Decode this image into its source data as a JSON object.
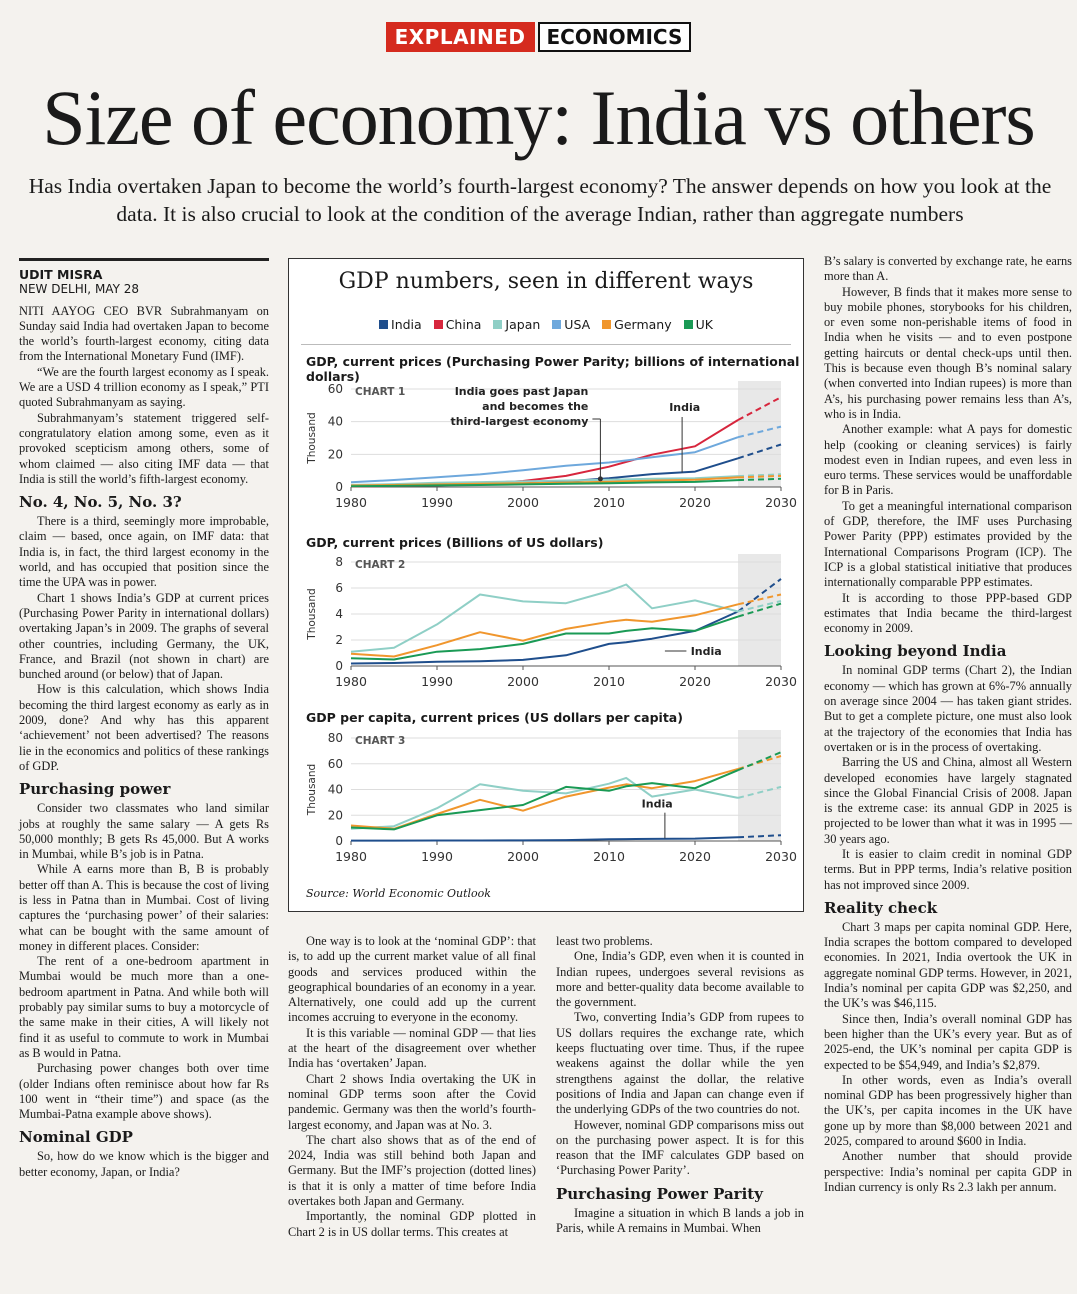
{
  "flag": {
    "left": "EXPLAINED",
    "right": "ECONOMICS"
  },
  "headline": "Size of economy: India vs others",
  "dek": "Has India overtaken Japan to become the world’s fourth-largest economy? The answer depends on how you look at the data. It is also crucial to look at the condition of the average Indian, rather than aggregate numbers",
  "byline": {
    "name": "UDIT MISRA",
    "place": "NEW DELHI, MAY 28"
  },
  "col1": {
    "p1": "NITI AAYOG CEO BVR Subrahmanyam on Sunday said India had overtaken Japan to become the world’s fourth-largest economy, citing data from the International Monetary Fund (IMF).",
    "p2": "“We are the fourth largest economy as I speak. We are a USD 4 trillion economy as I speak,” PTI quoted Subrahmanyam as saying.",
    "p3": "Subrahmanyam’s statement triggered self-congratulatory elation among some, even as it provoked scepticism among others, some of whom claimed — also citing IMF data — that India is still the world’s fifth-largest economy.",
    "h1": "No. 4, No. 5, No. 3?",
    "p4": "There is a third, seemingly more improbable, claim — based, once again, on IMF data: that India is, in fact, the third largest economy in the world, and has occupied that position since the time the UPA was in power.",
    "p5": "Chart 1 shows India’s GDP at current prices (Purchasing Power Parity in international dollars) overtaking Japan’s in 2009. The graphs of several other countries, including Germany, the UK, France, and Brazil (not shown in chart) are bunched around (or below) that of Japan.",
    "p6": "How is this calculation, which shows India becoming the third largest economy as early as in 2009, done? And why has this apparent ‘achievement’ not been advertised? The reasons lie in the economics and politics of these rankings of GDP.",
    "h2": "Purchasing power",
    "p7": "Consider two classmates who land similar jobs at roughly the same salary — A gets Rs 50,000 monthly; B gets Rs 45,000. But A works in Mumbai, while B’s job is in Patna.",
    "p8": "While A earns more than B, B is probably better off than A. This is because the cost of living is less in Patna than in Mumbai. Cost of living captures the ‘purchasing power’ of their salaries: what can be bought with the same amount of money in different places. Consider:",
    "p9": "The rent of a one-bedroom apartment in Mumbai would be much more than a one-bedroom apartment in Patna. And while both will probably pay similar sums to buy a motorcycle of the same make in their cities, A will likely not find it as useful to commute to work in Mumbai as B would in Patna.",
    "p10": "Purchasing power changes both over time (older Indians often reminisce about how far Rs 100 went in “their time”) and space (as the Mumbai-Patna example above shows).",
    "h3": "Nominal GDP",
    "p11": "So, how do we know which is the bigger and better economy, Japan, or India?"
  },
  "col2": {
    "p1": "One way is to look at the ‘nominal GDP’: that is, to add up the current market value of all final goods and services produced within the geographical boundaries of an economy in a year. Alternatively, one could add up the current incomes accruing to everyone in the economy.",
    "p2": "It is this variable — nominal GDP — that lies at the heart of the disagreement over whether India has ‘overtaken’ Japan.",
    "p3": "Chart 2 shows India overtaking the UK in nominal GDP terms soon after the Covid pandemic. Germany was then the world’s fourth-largest economy, and Japan was at No. 3.",
    "p4": "The chart also shows that as of the end of 2024, India was still behind both Japan and Germany. But the IMF’s projection (dotted lines) is that it is only a matter of time before India overtakes both Japan and Germany.",
    "p5": "Importantly, the nominal GDP plotted in Chart 2 is in US dollar terms. This creates at"
  },
  "col3": {
    "p0": "least two problems.",
    "p1": "One, India’s GDP, even when it is counted in Indian rupees, undergoes several revisions as more and better-quality data become available to the government.",
    "p2": "Two, converting India’s GDP from rupees to US dollars requires the exchange rate, which keeps fluctuating over time. Thus, if the rupee weakens against the dollar while the yen strengthens against the dollar, the relative positions of India and Japan can change even if the underlying GDPs of the two countries do not.",
    "p3": "However, nominal GDP comparisons miss out on the purchasing power aspect. It is for this reason that the IMF calculates GDP based on ‘Purchasing Power Parity’.",
    "h1": "Purchasing Power Parity",
    "p4": "Imagine a situation in which B lands a job in Paris, while A remains in Mumbai. When"
  },
  "col4": {
    "p0": "B’s salary is converted by exchange rate, he earns more than A.",
    "p1": "However, B finds that it makes more sense to buy mobile phones, storybooks for his children, or even some non-perishable items of food in India when he visits — and to even postpone getting haircuts or dental check-ups until then. This is because even though B’s nominal salary (when converted into Indian rupees) is more than A’s, his purchasing power remains less than A’s, who is in India.",
    "p2": "Another example: what A pays for domestic help (cooking or cleaning services) is fairly modest even in Indian rupees, and even less in euro terms. These services would be unaffordable for B in Paris.",
    "p3": "To get a meaningful international comparison of GDP, therefore, the IMF uses Purchasing Power Parity (PPP) estimates provided by the International Comparisons Program (ICP). The ICP is a global statistical initiative that produces internationally comparable PPP estimates.",
    "p4": "It is according to those PPP-based GDP estimates that India became the third-largest economy in 2009.",
    "h1": "Looking beyond India",
    "p5": "In nominal GDP terms (Chart 2), the Indian economy — which has grown at 6%-7% annually on average since 2004 — has taken giant strides. But to get a complete picture, one must also look at the trajectory of the economies that India has overtaken or is in the process of overtaking.",
    "p6": "Barring the US and China, almost all Western developed economies have largely stagnated since the Global Financial Crisis of 2008. Japan is the extreme case: its annual GDP in 2025 is projected to be lower than what it was in 1995 — 30 years ago.",
    "p7": "It is easier to claim credit in nominal GDP terms. But in PPP terms, India’s relative position has not improved since 2009.",
    "h2": "Reality check",
    "p8": "Chart 3 maps per capita nominal GDP. Here, India scrapes the bottom compared to developed economies. In 2021, India overtook the UK in aggregate nominal GDP terms. However, in 2021, India’s nominal per capita GDP was $2,250, and the UK’s was $46,115.",
    "p9": "Since then, India’s overall nominal GDP has been higher than the UK’s every year. But as of 2025-end, the UK’s nominal per capita GDP is expected to be $54,949, and India’s $2,879.",
    "p10": "In other words, even as India’s overall nominal GDP has been progressively higher than the UK’s, per capita incomes in the UK have gone up by more than $8,000 between 2021 and 2025, compared to around $600 in India.",
    "p11": "Another number that should provide perspective: India’s nominal per capita GDP in Indian currency is only Rs 2.3 lakh per annum."
  },
  "figure": {
    "title": "GDP numbers, seen in different ways",
    "source": "Source: World Economic Outlook",
    "colors": {
      "India": "#1f4e8c",
      "China": "#d7263d",
      "Japan": "#8fcfc6",
      "USA": "#6ea8dc",
      "Germany": "#f0962d",
      "UK": "#1a9a55"
    },
    "legend": [
      "India",
      "China",
      "Japan",
      "USA",
      "Germany",
      "UK"
    ]
  },
  "chart_data": [
    {
      "type": "line",
      "title": "GDP, current prices (Purchasing Power Parity; billions of international dollars)",
      "chart_label": "CHART 1",
      "ylabel": "Thousand",
      "ylim": [
        0,
        60
      ],
      "yticks": [
        0,
        20,
        40,
        60
      ],
      "xlim": [
        1980,
        2030
      ],
      "xticks": [
        1980,
        1990,
        2000,
        2010,
        2020,
        2030
      ],
      "projection_from": 2025,
      "annotations": [
        "India goes past Japan and becomes the third-largest economy",
        "India"
      ],
      "x": [
        1980,
        1985,
        1990,
        1995,
        2000,
        2005,
        2010,
        2015,
        2020,
        2025,
        2030
      ],
      "series": [
        {
          "name": "India",
          "values": [
            0.4,
            0.7,
            1.1,
            1.6,
            2.2,
            3.4,
            5.3,
            7.9,
            9.4,
            17.6,
            26.0
          ]
        },
        {
          "name": "China",
          "values": [
            0.3,
            0.6,
            1.0,
            2.2,
            3.7,
            6.8,
            12.4,
            19.8,
            24.9,
            41.0,
            55.0
          ]
        },
        {
          "name": "Japan",
          "values": [
            1.3,
            1.8,
            2.6,
            3.0,
            3.4,
            4.0,
            4.4,
            5.1,
            5.3,
            6.7,
            7.8
          ]
        },
        {
          "name": "USA",
          "values": [
            2.9,
            4.3,
            6.0,
            7.7,
            10.3,
            13.0,
            15.0,
            18.2,
            21.3,
            30.5,
            37.0
          ]
        },
        {
          "name": "Germany",
          "values": [
            0.9,
            1.2,
            1.6,
            2.0,
            2.3,
            2.7,
            3.2,
            3.9,
            4.5,
            5.9,
            6.8
          ]
        },
        {
          "name": "UK",
          "values": [
            0.5,
            0.7,
            1.0,
            1.2,
            1.6,
            2.0,
            2.3,
            2.8,
            3.1,
            4.2,
            5.0
          ]
        }
      ]
    },
    {
      "type": "line",
      "title": "GDP, current prices (Billions of US dollars)",
      "chart_label": "CHART 2",
      "ylabel": "Thousand",
      "ylim": [
        0,
        8
      ],
      "yticks": [
        0,
        2,
        4,
        6,
        8
      ],
      "xlim": [
        1980,
        2030
      ],
      "xticks": [
        1980,
        1990,
        2000,
        2010,
        2020,
        2030
      ],
      "projection_from": 2025,
      "annotations": [
        "India"
      ],
      "x": [
        1980,
        1985,
        1990,
        1995,
        2000,
        2005,
        2010,
        2012,
        2015,
        2020,
        2025,
        2030
      ],
      "series": [
        {
          "name": "India",
          "values": [
            0.19,
            0.23,
            0.32,
            0.36,
            0.47,
            0.82,
            1.7,
            1.83,
            2.1,
            2.7,
            4.19,
            6.7
          ]
        },
        {
          "name": "Japan",
          "values": [
            1.1,
            1.4,
            3.2,
            5.5,
            4.97,
            4.83,
            5.76,
            6.27,
            4.44,
            5.05,
            4.19,
            5.0
          ]
        },
        {
          "name": "Germany",
          "values": [
            0.95,
            0.73,
            1.6,
            2.6,
            1.95,
            2.85,
            3.4,
            3.55,
            3.4,
            3.9,
            4.75,
            5.5
          ]
        },
        {
          "name": "UK",
          "values": [
            0.6,
            0.5,
            1.1,
            1.3,
            1.7,
            2.5,
            2.5,
            2.7,
            2.9,
            2.7,
            3.8,
            4.8
          ]
        }
      ]
    },
    {
      "type": "line",
      "title": "GDP per capita, current prices (US dollars per capita)",
      "chart_label": "CHART 3",
      "ylabel": "Thousand",
      "ylim": [
        0,
        80
      ],
      "yticks": [
        0,
        20,
        40,
        60,
        80
      ],
      "xlim": [
        1980,
        2030
      ],
      "xticks": [
        1980,
        1990,
        2000,
        2010,
        2020,
        2030
      ],
      "projection_from": 2025,
      "annotations": [
        "India"
      ],
      "x": [
        1980,
        1985,
        1990,
        1995,
        2000,
        2005,
        2010,
        2012,
        2015,
        2020,
        2025,
        2030
      ],
      "series": [
        {
          "name": "India",
          "values": [
            0.3,
            0.3,
            0.4,
            0.4,
            0.45,
            0.7,
            1.35,
            1.45,
            1.6,
            1.9,
            2.9,
            4.5
          ]
        },
        {
          "name": "Japan",
          "values": [
            9.5,
            11.5,
            25.5,
            44,
            39,
            37,
            44.5,
            49,
            34.5,
            40,
            33.5,
            42
          ]
        },
        {
          "name": "Germany",
          "values": [
            12,
            9.5,
            21,
            32,
            23.5,
            34.5,
            41.5,
            44,
            41,
            46.5,
            56,
            66
          ]
        },
        {
          "name": "UK",
          "values": [
            10.5,
            9,
            20,
            24,
            28,
            42,
            39,
            42.5,
            45,
            41,
            55,
            69
          ]
        }
      ]
    }
  ]
}
